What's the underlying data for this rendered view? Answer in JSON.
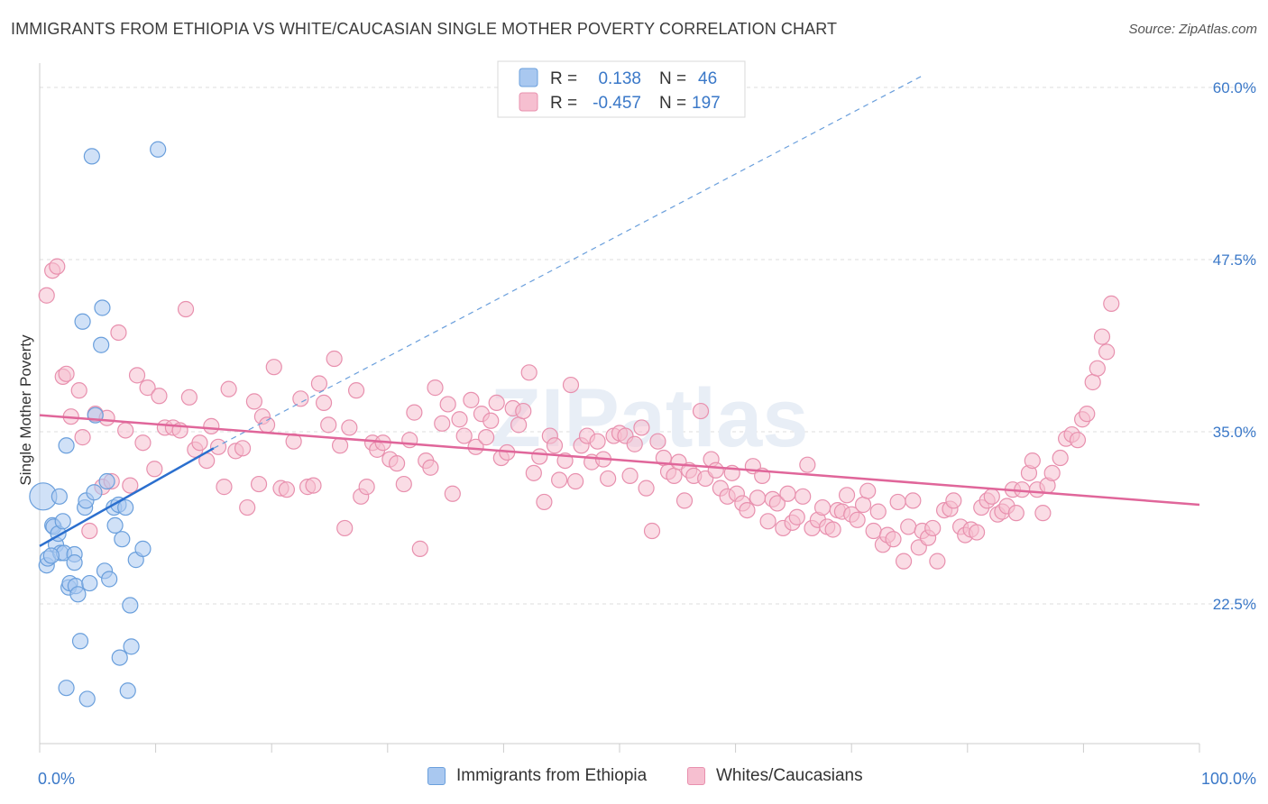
{
  "title": "IMMIGRANTS FROM ETHIOPIA VS WHITE/CAUCASIAN SINGLE MOTHER POVERTY CORRELATION CHART",
  "source": "Source: ZipAtlas.com",
  "watermark": "ZIPatlas",
  "colors": {
    "blue_fill": "#a9c8f0",
    "blue_stroke": "#6a9fdc",
    "blue_line": "#2b6fce",
    "pink_fill": "#f6bfd0",
    "pink_stroke": "#e890ae",
    "pink_line": "#e0669a",
    "axis_label": "#3a78c8",
    "grid": "#dddddd"
  },
  "stats_legend": [
    {
      "r_label": "R =",
      "r_value": "0.138",
      "n_label": "N =",
      "n_value": "46",
      "series": "blue"
    },
    {
      "r_label": "R =",
      "r_value": "-0.457",
      "n_label": "N =",
      "n_value": "197",
      "series": "pink"
    }
  ],
  "bottom_legend": [
    {
      "label": "Immigrants from Ethiopia",
      "series": "blue"
    },
    {
      "label": "Whites/Caucasians",
      "series": "pink"
    }
  ],
  "chart_data": {
    "type": "scatter",
    "title": "IMMIGRANTS FROM ETHIOPIA VS WHITE/CAUCASIAN SINGLE MOTHER POVERTY CORRELATION CHART",
    "xlabel": "",
    "ylabel": "Single Mother Poverty",
    "xlim": [
      0,
      100
    ],
    "ylim": [
      10,
      62
    ],
    "x_tick_labels": [
      "0.0%",
      "100.0%"
    ],
    "y_ticks": [
      22.5,
      35.0,
      47.5,
      60.0
    ],
    "y_tick_labels": [
      "22.5%",
      "35.0%",
      "47.5%",
      "60.0%"
    ],
    "grid": true,
    "series": [
      {
        "name": "Immigrants from Ethiopia",
        "color": "blue",
        "trend": {
          "x": [
            0,
            15
          ],
          "y": [
            26.7,
            33.8
          ],
          "dashed_to": [
            76,
            60.8
          ]
        },
        "points": [
          [
            0.3,
            30.3
          ],
          [
            0.6,
            25.3
          ],
          [
            0.7,
            25.8
          ],
          [
            1.1,
            28.2
          ],
          [
            1.2,
            28.1
          ],
          [
            1.4,
            26.8
          ],
          [
            1.6,
            27.6
          ],
          [
            1.7,
            30.3
          ],
          [
            1.8,
            26.2
          ],
          [
            2.1,
            26.2
          ],
          [
            2.3,
            16.4
          ],
          [
            2.3,
            34.0
          ],
          [
            2.5,
            23.7
          ],
          [
            2.6,
            24.0
          ],
          [
            3.0,
            26.1
          ],
          [
            3.0,
            25.5
          ],
          [
            3.1,
            23.8
          ],
          [
            3.3,
            23.2
          ],
          [
            3.5,
            19.8
          ],
          [
            3.7,
            43.0
          ],
          [
            3.9,
            29.5
          ],
          [
            4.0,
            30.0
          ],
          [
            4.1,
            15.6
          ],
          [
            4.3,
            24.0
          ],
          [
            4.5,
            55.0
          ],
          [
            4.7,
            30.6
          ],
          [
            4.8,
            36.2
          ],
          [
            5.3,
            41.3
          ],
          [
            5.4,
            44.0
          ],
          [
            5.6,
            24.9
          ],
          [
            5.8,
            31.4
          ],
          [
            6.0,
            24.3
          ],
          [
            6.4,
            29.5
          ],
          [
            6.5,
            28.2
          ],
          [
            6.8,
            29.7
          ],
          [
            7.1,
            27.2
          ],
          [
            7.4,
            29.5
          ],
          [
            7.6,
            16.2
          ],
          [
            7.8,
            22.4
          ],
          [
            7.9,
            19.4
          ],
          [
            8.3,
            25.7
          ],
          [
            6.9,
            18.6
          ],
          [
            8.9,
            26.5
          ],
          [
            10.2,
            55.5
          ],
          [
            2.0,
            28.5
          ],
          [
            1.0,
            26.0
          ]
        ]
      },
      {
        "name": "Whites/Caucasians",
        "color": "pink",
        "trend": {
          "x": [
            0,
            100
          ],
          "y": [
            36.2,
            29.7
          ]
        },
        "points": [
          [
            0.6,
            44.9
          ],
          [
            1.1,
            46.7
          ],
          [
            1.5,
            47.0
          ],
          [
            2.0,
            39.0
          ],
          [
            2.3,
            39.2
          ],
          [
            2.7,
            36.1
          ],
          [
            3.4,
            38.0
          ],
          [
            3.7,
            34.6
          ],
          [
            4.3,
            27.8
          ],
          [
            4.8,
            36.3
          ],
          [
            5.4,
            31.0
          ],
          [
            5.8,
            36.0
          ],
          [
            6.2,
            31.4
          ],
          [
            6.8,
            42.2
          ],
          [
            7.4,
            35.1
          ],
          [
            7.8,
            31.1
          ],
          [
            8.4,
            39.1
          ],
          [
            8.9,
            34.2
          ],
          [
            9.3,
            38.2
          ],
          [
            9.9,
            32.3
          ],
          [
            10.3,
            37.6
          ],
          [
            10.8,
            35.3
          ],
          [
            11.5,
            35.3
          ],
          [
            12.1,
            35.1
          ],
          [
            12.6,
            43.9
          ],
          [
            12.9,
            37.5
          ],
          [
            13.4,
            33.7
          ],
          [
            13.8,
            34.2
          ],
          [
            14.4,
            32.9
          ],
          [
            14.8,
            35.4
          ],
          [
            15.4,
            33.9
          ],
          [
            15.9,
            31.0
          ],
          [
            16.3,
            38.1
          ],
          [
            16.9,
            33.6
          ],
          [
            17.5,
            33.8
          ],
          [
            17.9,
            29.5
          ],
          [
            18.5,
            37.2
          ],
          [
            18.9,
            31.2
          ],
          [
            19.2,
            36.1
          ],
          [
            19.6,
            35.5
          ],
          [
            20.2,
            39.7
          ],
          [
            20.8,
            30.9
          ],
          [
            21.3,
            30.8
          ],
          [
            21.9,
            34.3
          ],
          [
            22.5,
            37.4
          ],
          [
            23.1,
            31.0
          ],
          [
            23.6,
            31.1
          ],
          [
            24.1,
            38.5
          ],
          [
            24.5,
            37.1
          ],
          [
            24.9,
            35.5
          ],
          [
            25.4,
            40.3
          ],
          [
            25.9,
            34.0
          ],
          [
            26.3,
            28.0
          ],
          [
            26.7,
            35.3
          ],
          [
            27.3,
            38.0
          ],
          [
            27.7,
            30.3
          ],
          [
            28.2,
            31.0
          ],
          [
            28.7,
            34.2
          ],
          [
            29.1,
            33.7
          ],
          [
            29.6,
            34.2
          ],
          [
            30.2,
            33.0
          ],
          [
            30.8,
            32.7
          ],
          [
            31.4,
            31.2
          ],
          [
            31.9,
            34.4
          ],
          [
            32.3,
            36.4
          ],
          [
            32.8,
            26.5
          ],
          [
            33.3,
            32.9
          ],
          [
            33.7,
            32.4
          ],
          [
            34.1,
            38.2
          ],
          [
            34.7,
            35.6
          ],
          [
            35.2,
            37.0
          ],
          [
            35.6,
            30.5
          ],
          [
            36.2,
            35.9
          ],
          [
            36.6,
            34.7
          ],
          [
            37.2,
            37.3
          ],
          [
            37.6,
            33.9
          ],
          [
            38.1,
            36.3
          ],
          [
            38.5,
            34.6
          ],
          [
            38.9,
            35.8
          ],
          [
            39.4,
            37.1
          ],
          [
            39.8,
            33.1
          ],
          [
            40.3,
            33.5
          ],
          [
            40.8,
            36.7
          ],
          [
            41.3,
            35.5
          ],
          [
            41.7,
            36.5
          ],
          [
            42.2,
            39.3
          ],
          [
            42.6,
            32.0
          ],
          [
            43.1,
            33.2
          ],
          [
            43.5,
            29.9
          ],
          [
            44.0,
            34.7
          ],
          [
            44.4,
            34.0
          ],
          [
            44.8,
            31.5
          ],
          [
            45.3,
            32.9
          ],
          [
            45.8,
            38.4
          ],
          [
            46.2,
            31.4
          ],
          [
            46.7,
            34.0
          ],
          [
            47.2,
            34.7
          ],
          [
            47.6,
            32.8
          ],
          [
            48.1,
            34.3
          ],
          [
            48.6,
            33.0
          ],
          [
            49.0,
            31.6
          ],
          [
            49.5,
            34.7
          ],
          [
            50.0,
            34.9
          ],
          [
            50.5,
            34.7
          ],
          [
            50.9,
            31.8
          ],
          [
            51.3,
            34.1
          ],
          [
            51.9,
            35.3
          ],
          [
            52.3,
            30.9
          ],
          [
            52.8,
            27.8
          ],
          [
            53.3,
            34.3
          ],
          [
            53.8,
            33.1
          ],
          [
            54.2,
            32.1
          ],
          [
            54.7,
            31.8
          ],
          [
            55.1,
            32.8
          ],
          [
            55.6,
            30.0
          ],
          [
            56.0,
            32.2
          ],
          [
            56.4,
            31.8
          ],
          [
            57.0,
            36.5
          ],
          [
            57.4,
            31.6
          ],
          [
            57.9,
            33.0
          ],
          [
            58.3,
            32.2
          ],
          [
            58.7,
            30.9
          ],
          [
            59.3,
            30.3
          ],
          [
            59.7,
            32.0
          ],
          [
            60.1,
            30.5
          ],
          [
            60.6,
            29.8
          ],
          [
            61.0,
            29.3
          ],
          [
            61.5,
            32.5
          ],
          [
            61.9,
            30.2
          ],
          [
            62.3,
            31.8
          ],
          [
            62.8,
            28.5
          ],
          [
            63.2,
            30.1
          ],
          [
            63.6,
            29.8
          ],
          [
            64.1,
            28.0
          ],
          [
            64.5,
            30.5
          ],
          [
            64.9,
            28.4
          ],
          [
            65.3,
            28.8
          ],
          [
            65.8,
            30.3
          ],
          [
            66.2,
            32.6
          ],
          [
            66.6,
            28.0
          ],
          [
            67.1,
            28.6
          ],
          [
            67.5,
            29.5
          ],
          [
            67.9,
            28.1
          ],
          [
            68.4,
            27.9
          ],
          [
            68.8,
            29.3
          ],
          [
            69.2,
            29.2
          ],
          [
            69.6,
            30.4
          ],
          [
            70.0,
            29.0
          ],
          [
            70.5,
            28.6
          ],
          [
            71.0,
            29.7
          ],
          [
            71.4,
            30.7
          ],
          [
            71.9,
            27.8
          ],
          [
            72.3,
            29.2
          ],
          [
            72.7,
            26.8
          ],
          [
            73.1,
            27.5
          ],
          [
            73.6,
            27.2
          ],
          [
            74.0,
            29.9
          ],
          [
            74.5,
            25.6
          ],
          [
            74.9,
            28.1
          ],
          [
            75.3,
            30.0
          ],
          [
            75.8,
            26.6
          ],
          [
            76.1,
            27.8
          ],
          [
            76.6,
            27.3
          ],
          [
            77.0,
            28.0
          ],
          [
            77.4,
            25.6
          ],
          [
            78.0,
            29.3
          ],
          [
            78.5,
            29.4
          ],
          [
            78.8,
            30.0
          ],
          [
            79.4,
            28.1
          ],
          [
            79.8,
            27.5
          ],
          [
            80.3,
            27.9
          ],
          [
            80.8,
            27.7
          ],
          [
            81.2,
            29.5
          ],
          [
            81.7,
            30.0
          ],
          [
            82.1,
            30.3
          ],
          [
            82.6,
            29.0
          ],
          [
            83.0,
            29.2
          ],
          [
            83.4,
            29.6
          ],
          [
            83.9,
            30.8
          ],
          [
            84.2,
            29.1
          ],
          [
            84.7,
            30.8
          ],
          [
            85.3,
            32.0
          ],
          [
            85.6,
            32.9
          ],
          [
            86.0,
            30.8
          ],
          [
            86.5,
            29.1
          ],
          [
            86.9,
            31.1
          ],
          [
            87.3,
            32.0
          ],
          [
            88.0,
            33.1
          ],
          [
            88.5,
            34.5
          ],
          [
            89.0,
            34.8
          ],
          [
            89.5,
            34.4
          ],
          [
            89.9,
            35.9
          ],
          [
            90.3,
            36.3
          ],
          [
            90.8,
            38.6
          ],
          [
            91.2,
            39.6
          ],
          [
            91.6,
            41.9
          ],
          [
            92.0,
            40.8
          ],
          [
            92.4,
            44.3
          ]
        ]
      }
    ]
  }
}
